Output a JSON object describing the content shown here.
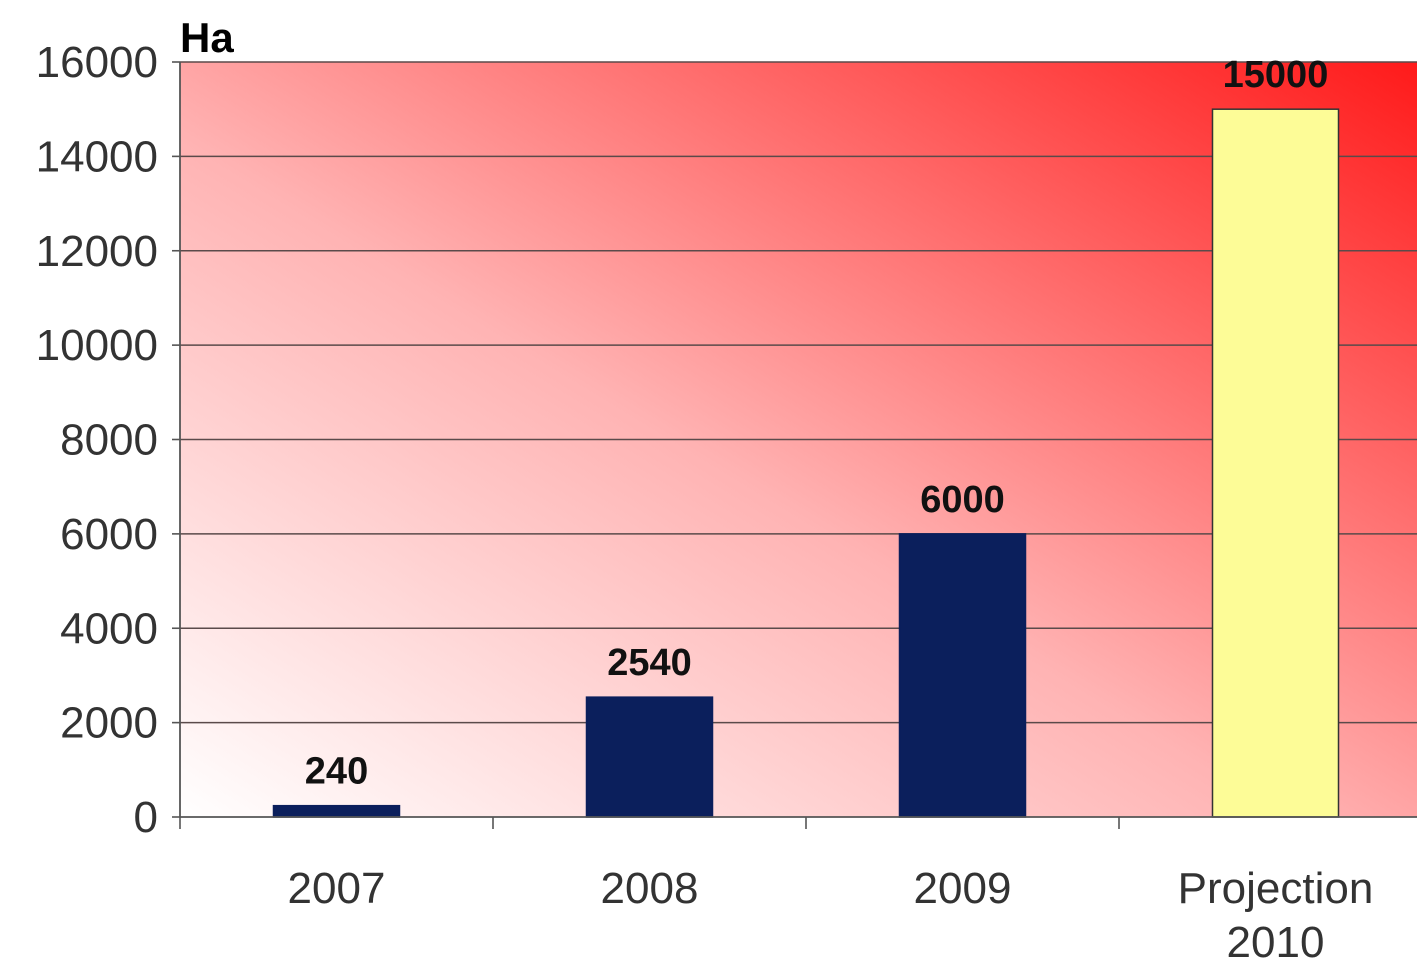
{
  "chart_data": {
    "type": "bar",
    "unit_label": "Ha",
    "categories": [
      [
        "2007"
      ],
      [
        "2008"
      ],
      [
        "2009"
      ],
      [
        "Projection",
        "2010"
      ]
    ],
    "values": [
      240,
      2540,
      6000,
      15000
    ],
    "data_labels": [
      "240",
      "2540",
      "6000",
      "15000"
    ],
    "bar_colors": [
      "#0b1f5c",
      "#0b1f5c",
      "#0b1f5c",
      "#fdfc97"
    ],
    "bar_stroke": [
      "#0b1f5c",
      "#0b1f5c",
      "#0b1f5c",
      "#333333"
    ],
    "ylim": [
      0,
      16000
    ],
    "yticks": [
      0,
      2000,
      4000,
      6000,
      8000,
      10000,
      12000,
      14000,
      16000
    ],
    "grid": true,
    "background": {
      "from_color": "#ffffff",
      "to_color": "#ff1a1a",
      "direction": "bottom-left to top-right"
    },
    "legend": "none"
  }
}
